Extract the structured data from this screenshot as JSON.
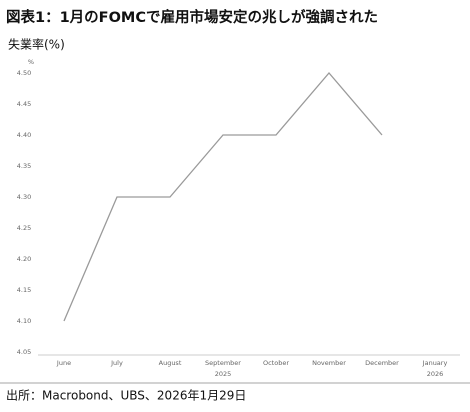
{
  "chart_data": {
    "type": "line",
    "title": "図表1：1月のFOMCで雇用市場安定の兆しが強調された",
    "subtitle": "失業率(%)",
    "y_unit": "%",
    "source": "出所：Macrobond、UBS、2026年1月29日",
    "categories": [
      "June",
      "July",
      "August",
      "September",
      "October",
      "November",
      "December",
      "January"
    ],
    "category_years": [
      null,
      null,
      null,
      "2025",
      null,
      null,
      null,
      "2026"
    ],
    "series": [
      {
        "name": "失業率",
        "color": "#9a9a9a",
        "values": [
          4.1,
          4.3,
          4.3,
          4.4,
          4.4,
          4.5,
          4.4,
          null
        ]
      }
    ],
    "ylim": [
      4.05,
      4.5
    ],
    "yticks": [
      {
        "value": 4.05,
        "label": "4.05"
      },
      {
        "value": 4.1,
        "label": "4.10"
      },
      {
        "value": 4.15,
        "label": "4.15"
      },
      {
        "value": 4.2,
        "label": "4.20"
      },
      {
        "value": 4.25,
        "label": "4.25"
      },
      {
        "value": 4.3,
        "label": "4.30"
      },
      {
        "value": 4.35,
        "label": "4.35"
      },
      {
        "value": 4.4,
        "label": "4.40"
      },
      {
        "value": 4.45,
        "label": "4.45"
      },
      {
        "value": 4.5,
        "label": "4.50"
      }
    ],
    "grid": false
  }
}
